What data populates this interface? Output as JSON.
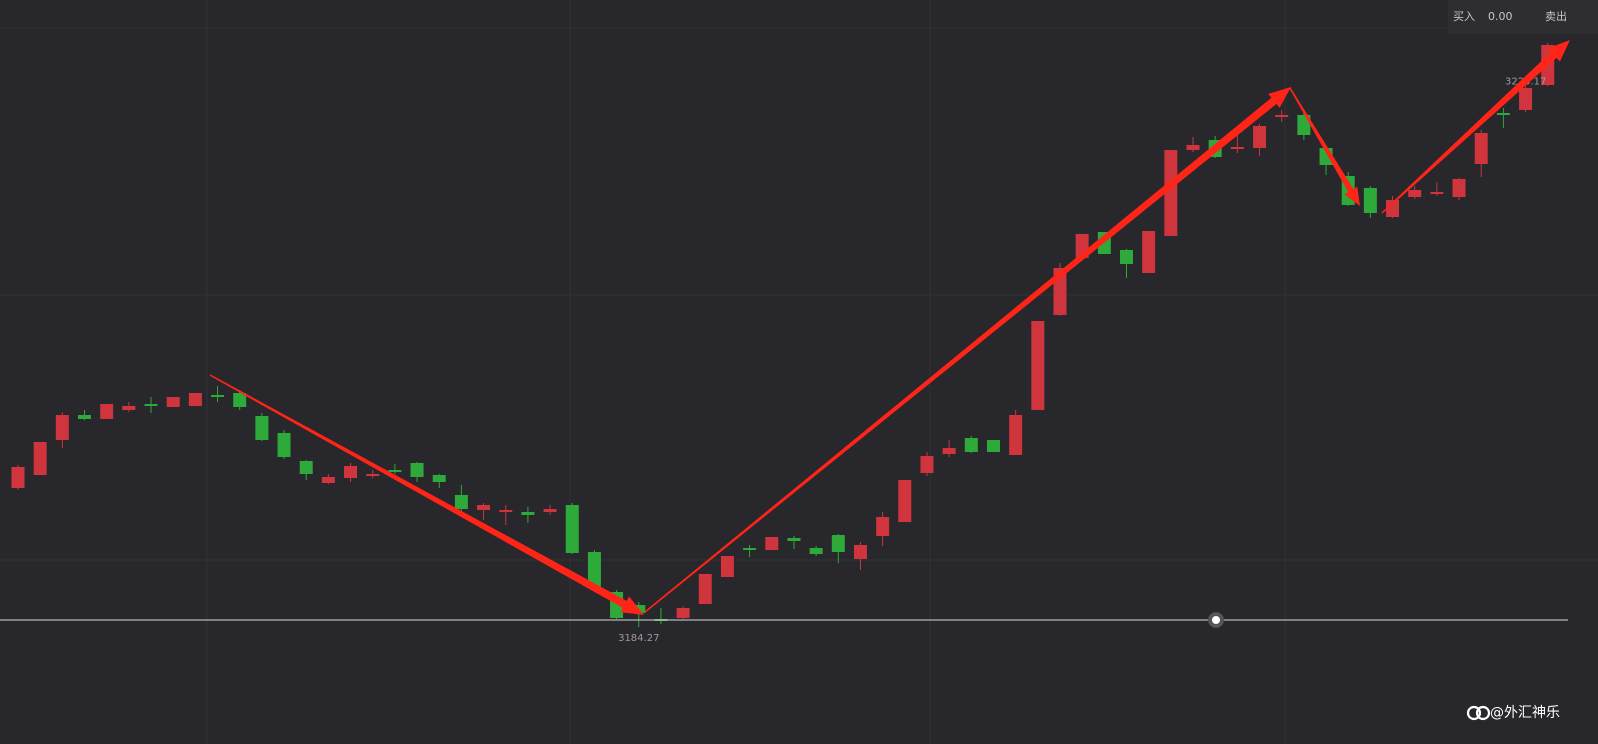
{
  "chart_data": {
    "type": "candlestick",
    "up_color": "#d0343c",
    "down_color": "#2eaa3a",
    "ylim": [
      3176.08,
      3228.16
    ],
    "open": [
      3194.0,
      3194.91,
      3197.36,
      3199.11,
      3198.83,
      3199.46,
      3199.88,
      3199.67,
      3199.74,
      3200.51,
      3200.65,
      3199.04,
      3197.85,
      3195.89,
      3194.35,
      3194.7,
      3194.84,
      3195.26,
      3195.75,
      3194.91,
      3193.51,
      3192.46,
      3192.32,
      3192.32,
      3192.32,
      3192.81,
      3189.52,
      3186.72,
      3185.81,
      3184.83,
      3184.9,
      3185.88,
      3187.77,
      3189.8,
      3189.66,
      3190.5,
      3189.8,
      3190.71,
      3189.03,
      3190.64,
      3191.62,
      3195.05,
      3196.38,
      3197.5,
      3197.36,
      3196.31,
      3199.46,
      3206.11,
      3210.1,
      3211.92,
      3210.66,
      3209.05,
      3211.64,
      3217.66,
      3218.36,
      3217.73,
      3217.8,
      3219.97,
      3220.11,
      3217.8,
      3215.84,
      3215.0,
      3212.97,
      3214.37,
      3214.58,
      3214.37,
      3216.68,
      3220.25,
      3220.46,
      3222.21
    ],
    "high": [
      3195.61,
      3197.22,
      3199.32,
      3199.46,
      3199.88,
      3200.02,
      3200.37,
      3200.37,
      3200.65,
      3201.14,
      3200.86,
      3199.25,
      3198.06,
      3195.96,
      3194.98,
      3195.75,
      3195.26,
      3195.68,
      3195.82,
      3194.98,
      3194.21,
      3192.95,
      3192.81,
      3192.67,
      3192.81,
      3192.95,
      3189.66,
      3186.86,
      3186.02,
      3185.6,
      3185.74,
      3187.98,
      3189.24,
      3190.01,
      3190.57,
      3190.64,
      3189.94,
      3190.78,
      3190.22,
      3192.32,
      3194.56,
      3196.52,
      3197.36,
      3197.64,
      3197.36,
      3199.46,
      3205.69,
      3209.75,
      3211.78,
      3211.92,
      3210.73,
      3211.99,
      3217.66,
      3218.57,
      3218.64,
      3218.71,
      3219.48,
      3220.46,
      3220.25,
      3217.94,
      3216.12,
      3215.14,
      3214.44,
      3215.14,
      3215.42,
      3215.7,
      3219.06,
      3220.6,
      3222.14,
      3225.17
    ],
    "low": [
      3193.86,
      3194.91,
      3196.8,
      3198.76,
      3198.83,
      3199.32,
      3199.25,
      3199.67,
      3199.74,
      3200.02,
      3199.46,
      3197.29,
      3196.03,
      3194.56,
      3194.28,
      3194.42,
      3194.7,
      3194.98,
      3194.42,
      3194.0,
      3192.39,
      3191.76,
      3191.41,
      3191.55,
      3192.11,
      3189.38,
      3186.86,
      3184.83,
      3184.27,
      3184.48,
      3184.83,
      3185.88,
      3187.77,
      3189.17,
      3189.66,
      3189.73,
      3189.24,
      3188.75,
      3188.26,
      3189.94,
      3191.62,
      3194.84,
      3196.17,
      3196.45,
      3196.52,
      3196.31,
      3199.46,
      3206.04,
      3210.1,
      3210.38,
      3208.7,
      3209.05,
      3211.64,
      3217.52,
      3217.1,
      3217.45,
      3217.24,
      3219.62,
      3218.36,
      3215.91,
      3213.74,
      3212.9,
      3212.9,
      3214.23,
      3214.44,
      3214.16,
      3215.77,
      3219.2,
      3220.32,
      3222.14
    ],
    "close": [
      3195.47,
      3197.22,
      3199.11,
      3198.83,
      3199.88,
      3199.74,
      3199.74,
      3200.37,
      3200.65,
      3200.37,
      3199.67,
      3197.36,
      3196.17,
      3194.98,
      3194.77,
      3195.54,
      3194.98,
      3195.12,
      3194.77,
      3194.42,
      3192.53,
      3192.81,
      3192.46,
      3192.11,
      3192.53,
      3189.45,
      3187.0,
      3184.9,
      3185.25,
      3184.69,
      3185.6,
      3187.98,
      3189.24,
      3189.66,
      3190.57,
      3190.29,
      3189.38,
      3189.52,
      3190.01,
      3191.97,
      3194.56,
      3196.24,
      3196.8,
      3196.52,
      3196.52,
      3199.11,
      3205.69,
      3209.4,
      3211.78,
      3210.38,
      3209.68,
      3211.99,
      3217.66,
      3218.01,
      3217.17,
      3217.87,
      3219.34,
      3220.11,
      3218.71,
      3216.61,
      3213.81,
      3213.25,
      3214.16,
      3214.86,
      3214.72,
      3215.63,
      3218.85,
      3220.11,
      3222.0,
      3225.01
    ]
  },
  "info_panel": {
    "buy_label": "买入",
    "buy_value": "0.00",
    "sell_label": "卖出"
  },
  "watermark": "@外汇神乐"
}
